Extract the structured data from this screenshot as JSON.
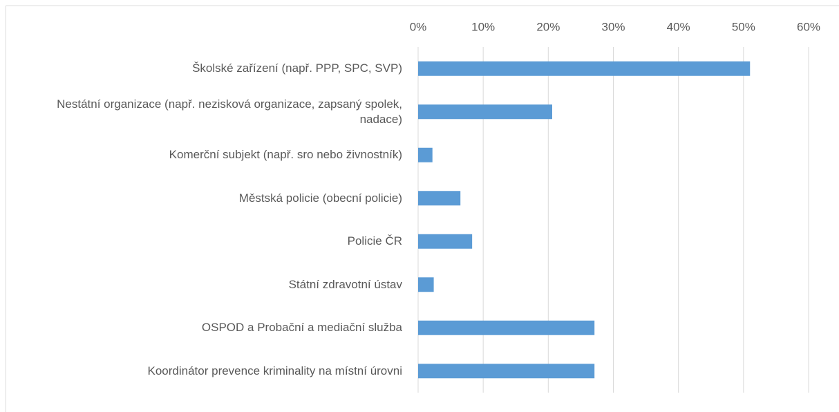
{
  "chart_data": {
    "type": "barh",
    "categories": [
      "Školské zařízení (např. PPP, SPC, SVP)",
      "Nestátní organizace (např. nezisková organizace, zapsaný spolek, nadace)",
      "Komerční subjekt (např. sro nebo živnostník)",
      "Městská policie (obecní policie)",
      "Policie ČR",
      "Státní zdravotní ústav",
      "OSPOD a Probační a mediační služba",
      "Koordinátor prevence kriminality na místní úrovni"
    ],
    "values": [
      51,
      20.6,
      2.2,
      6.5,
      8.3,
      2.4,
      27.1,
      27.1
    ],
    "color": "#5b9bd5",
    "xlim": [
      0,
      60
    ],
    "xticks": [
      {
        "value": 0,
        "label": "0%"
      },
      {
        "value": 10,
        "label": "10%"
      },
      {
        "value": 20,
        "label": "20%"
      },
      {
        "value": 30,
        "label": "30%"
      },
      {
        "value": 40,
        "label": "40%"
      },
      {
        "value": 50,
        "label": "50%"
      },
      {
        "value": 60,
        "label": "60%"
      }
    ],
    "grid": true
  }
}
